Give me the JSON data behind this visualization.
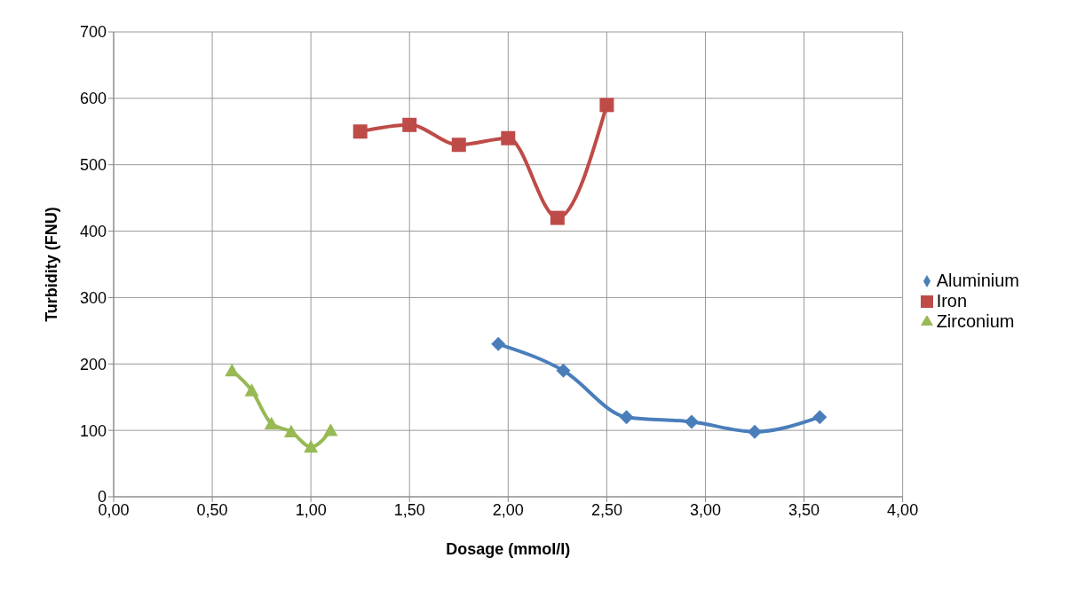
{
  "chart_data": {
    "type": "line",
    "xlabel": "Dosage (mmol/l)",
    "ylabel": "Turbidity (FNU)",
    "xlim": [
      0,
      4
    ],
    "xticks": [
      {
        "value": 0,
        "label": "0,00"
      },
      {
        "value": 0.5,
        "label": "0,50"
      },
      {
        "value": 1,
        "label": "1,00"
      },
      {
        "value": 1.5,
        "label": "1,50"
      },
      {
        "value": 2,
        "label": "2,00"
      },
      {
        "value": 2.5,
        "label": "2,50"
      },
      {
        "value": 3,
        "label": "3,00"
      },
      {
        "value": 3.5,
        "label": "3,50"
      },
      {
        "value": 4,
        "label": "4,00"
      }
    ],
    "ylim": [
      0,
      700
    ],
    "yticks": [
      0,
      100,
      200,
      300,
      400,
      500,
      600,
      700
    ],
    "grid": true,
    "legend": "right",
    "series": [
      {
        "name": "Aluminium",
        "color": "#4a7ebb",
        "marker": "diamond",
        "x": [
          1.95,
          2.28,
          2.6,
          2.93,
          3.25,
          3.58
        ],
        "values": [
          230,
          190,
          120,
          113,
          98,
          120
        ]
      },
      {
        "name": "Iron",
        "color": "#be4b48",
        "marker": "square",
        "x": [
          1.25,
          1.5,
          1.75,
          2.0,
          2.25,
          2.5
        ],
        "values": [
          550,
          560,
          530,
          540,
          420,
          590
        ]
      },
      {
        "name": "Zirconium",
        "color": "#98b954",
        "marker": "triangle",
        "x": [
          0.6,
          0.7,
          0.8,
          0.9,
          1.0,
          1.1
        ],
        "values": [
          190,
          160,
          110,
          98,
          75,
          100
        ]
      }
    ]
  }
}
